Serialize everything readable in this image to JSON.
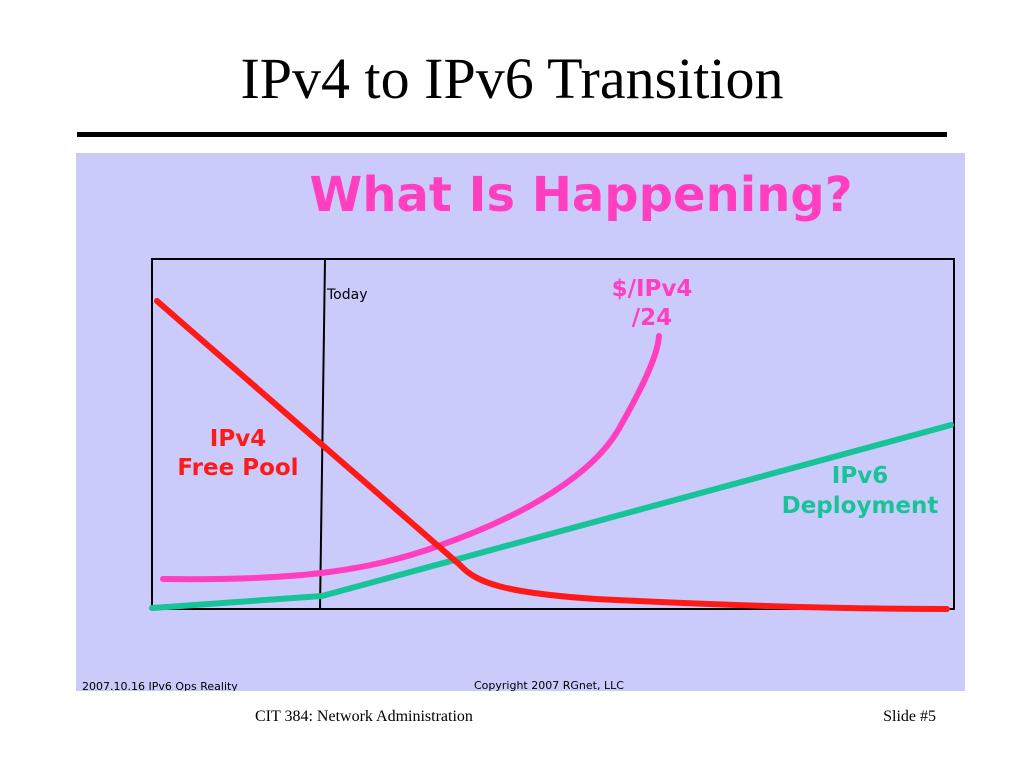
{
  "slide": {
    "title": "IPv4 to IPv6 Transition",
    "footer_course": "CIT 384: Network Administration",
    "footer_slide": "Slide #5"
  },
  "figure": {
    "heading": "What Is Happening?",
    "today_label": "Today",
    "ipv4_free_pool_line1": "IPv4",
    "ipv4_free_pool_line2": "Free Pool",
    "price_line1": "$/IPv4",
    "price_line2": "/24",
    "ipv6_line1": "IPv6",
    "ipv6_line2": "Deployment",
    "footnote_left": "2007.10.16 IPv6 Ops Reality",
    "footnote_right": "Copyright 2007 RGnet, LLC"
  },
  "colors": {
    "panel_bg": "#cbcbfb",
    "heading": "#ff3fbf",
    "ipv4_free_pool": "#ff1a1a",
    "price": "#ff3fbf",
    "ipv6_deployment": "#19c39a",
    "axes": "#000000"
  }
}
